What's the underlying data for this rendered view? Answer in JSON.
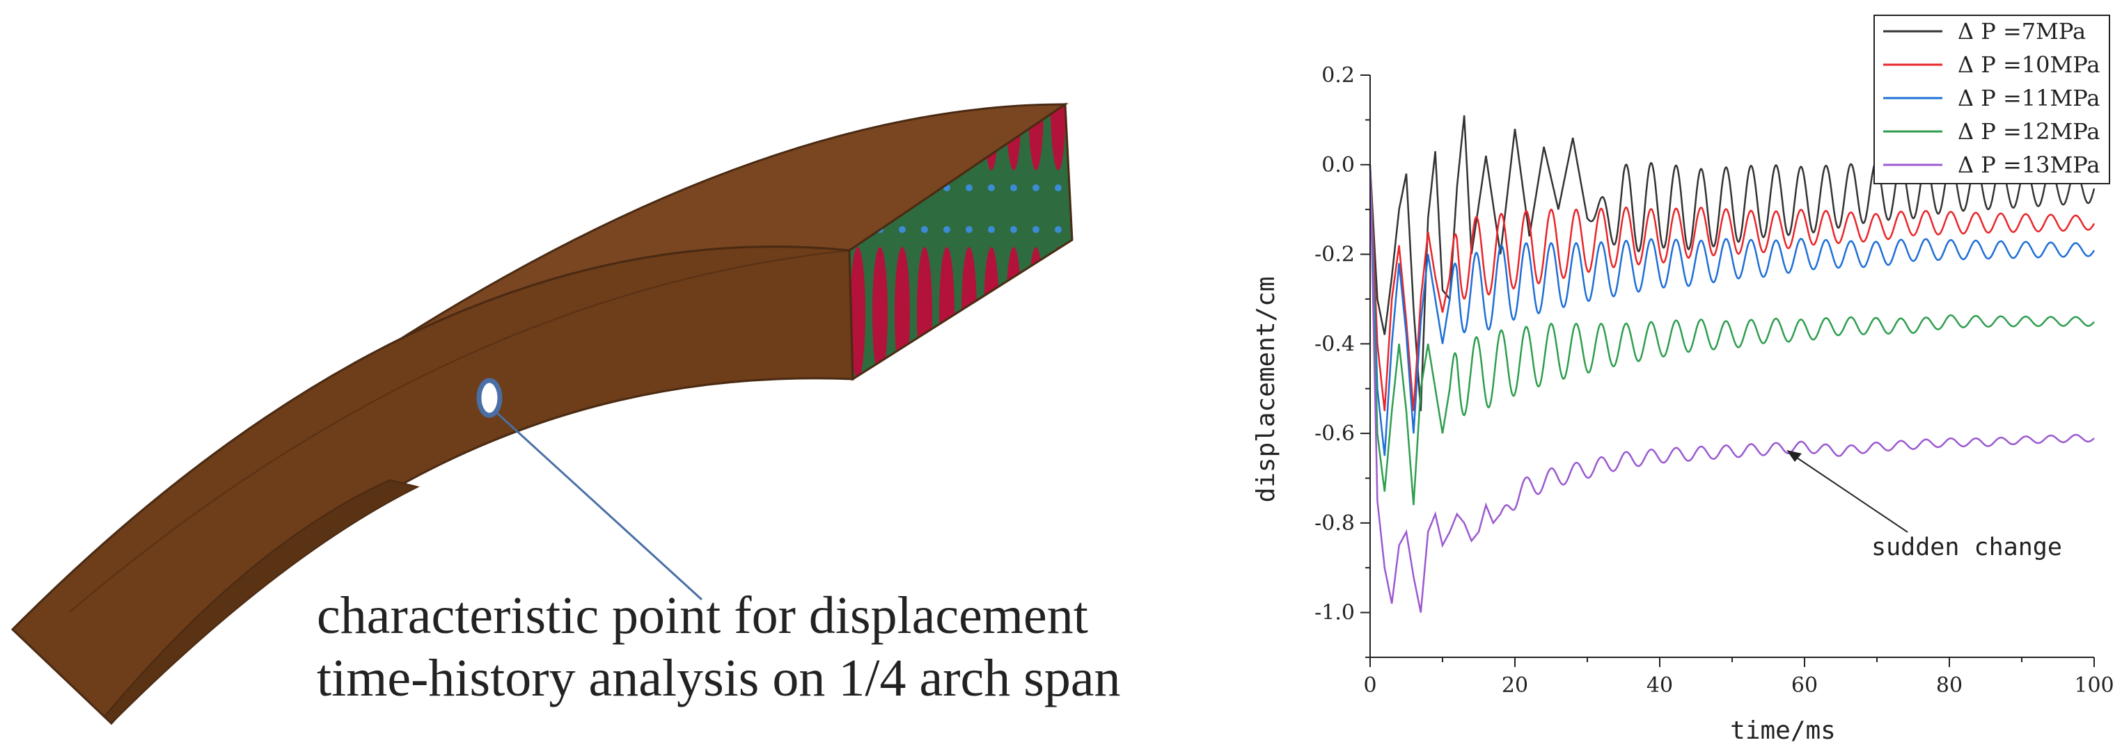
{
  "figure": {
    "model_caption": {
      "line1": "characteristic point for displacement",
      "line2": "time-history analysis on 1/4 arch span"
    },
    "colors": {
      "arch_face": "#7a4621",
      "arch_top": "#6a3a19",
      "arch_edge": "#4a2a12",
      "cell_red": "#b3123a",
      "cell_green": "#2e6b3f",
      "marker": "#4a6fa5"
    }
  },
  "chart_data": {
    "type": "line",
    "title": "",
    "xlabel": "time/ms",
    "ylabel": "displacement/cm",
    "xlim": [
      0,
      100
    ],
    "ylim": [
      -1.1,
      0.2
    ],
    "xticks": [
      0,
      20,
      40,
      60,
      80,
      100
    ],
    "yticks": [
      0.2,
      0.0,
      -0.2,
      -0.4,
      -0.6,
      -0.8,
      -1.0
    ],
    "xtick_labels": [
      "0",
      "20",
      "40",
      "60",
      "80",
      "100"
    ],
    "ytick_labels": [
      "0.2",
      "0.0",
      "-0.2",
      "-0.4",
      "-0.6",
      "-0.8",
      "-1.0"
    ],
    "legend_position": "top-right",
    "annotation": {
      "text": "sudden change",
      "x": 58,
      "y": -0.645
    },
    "series": [
      {
        "name": "Δ P =7MPa",
        "color": "#333333",
        "x": [
          0,
          1,
          2,
          3,
          4,
          5,
          6,
          7,
          8,
          9,
          10,
          11,
          12,
          13,
          14,
          16,
          18,
          20,
          22,
          24,
          26,
          28,
          30,
          35,
          40,
          45,
          50,
          55,
          60,
          65,
          70,
          75,
          80,
          85,
          90,
          95,
          100
        ],
        "y": [
          0.0,
          -0.3,
          -0.38,
          -0.25,
          -0.1,
          -0.02,
          -0.32,
          -0.55,
          -0.12,
          0.03,
          -0.28,
          -0.3,
          -0.05,
          0.11,
          -0.2,
          0.02,
          -0.2,
          0.08,
          -0.16,
          0.04,
          -0.1,
          0.06,
          -0.12,
          -0.1,
          -0.09,
          -0.1,
          -0.09,
          -0.08,
          -0.08,
          -0.07,
          -0.06,
          -0.06,
          -0.05,
          -0.05,
          -0.05,
          -0.05,
          -0.05
        ],
        "osc_amp": [
          0,
          0,
          0,
          0,
          0,
          0,
          0,
          0,
          0,
          0,
          0,
          0,
          0,
          0,
          0,
          0,
          0,
          0,
          0,
          0,
          0,
          0,
          0,
          0.1,
          0.095,
          0.09,
          0.085,
          0.08,
          0.075,
          0.07,
          0.065,
          0.06,
          0.055,
          0.05,
          0.045,
          0.04,
          0.035
        ]
      },
      {
        "name": "Δ P =10MPa",
        "color": "#e8262a",
        "x": [
          0,
          1,
          2,
          3,
          4,
          5,
          6,
          7,
          8,
          9,
          10,
          11,
          12,
          14,
          16,
          18,
          20,
          25,
          30,
          35,
          40,
          45,
          50,
          55,
          60,
          65,
          70,
          75,
          80,
          85,
          90,
          95,
          100
        ],
        "y": [
          0.0,
          -0.4,
          -0.55,
          -0.3,
          -0.18,
          -0.35,
          -0.55,
          -0.3,
          -0.15,
          -0.25,
          -0.33,
          -0.25,
          -0.18,
          -0.22,
          -0.2,
          -0.2,
          -0.19,
          -0.18,
          -0.17,
          -0.16,
          -0.16,
          -0.15,
          -0.15,
          -0.15,
          -0.14,
          -0.14,
          -0.14,
          -0.13,
          -0.13,
          -0.13,
          -0.13,
          -0.13,
          -0.13
        ],
        "osc_amp": [
          0,
          0,
          0,
          0,
          0,
          0,
          0,
          0,
          0,
          0,
          0,
          0,
          0.1,
          0.1,
          0.09,
          0.09,
          0.085,
          0.08,
          0.07,
          0.065,
          0.06,
          0.055,
          0.05,
          0.045,
          0.04,
          0.035,
          0.03,
          0.028,
          0.025,
          0.022,
          0.02,
          0.018,
          0.015
        ]
      },
      {
        "name": "Δ P =11MPa",
        "color": "#1e6fd6",
        "x": [
          0,
          1,
          2,
          3,
          4,
          5,
          6,
          7,
          8,
          9,
          10,
          11,
          12,
          14,
          16,
          18,
          20,
          25,
          30,
          35,
          40,
          45,
          50,
          55,
          60,
          65,
          70,
          75,
          80,
          85,
          90,
          95,
          100
        ],
        "y": [
          0.0,
          -0.5,
          -0.65,
          -0.4,
          -0.22,
          -0.38,
          -0.6,
          -0.35,
          -0.2,
          -0.3,
          -0.4,
          -0.3,
          -0.25,
          -0.3,
          -0.28,
          -0.27,
          -0.26,
          -0.25,
          -0.24,
          -0.23,
          -0.22,
          -0.22,
          -0.21,
          -0.21,
          -0.2,
          -0.2,
          -0.2,
          -0.19,
          -0.19,
          -0.19,
          -0.19,
          -0.19,
          -0.19
        ],
        "osc_amp": [
          0,
          0,
          0,
          0,
          0,
          0,
          0,
          0,
          0,
          0,
          0,
          0,
          0.1,
          0.1,
          0.09,
          0.09,
          0.085,
          0.075,
          0.065,
          0.06,
          0.055,
          0.05,
          0.045,
          0.04,
          0.035,
          0.03,
          0.028,
          0.025,
          0.022,
          0.02,
          0.018,
          0.016,
          0.014
        ]
      },
      {
        "name": "Δ P =12MPa",
        "color": "#2e9e4e",
        "x": [
          0,
          1,
          2,
          3,
          4,
          5,
          6,
          7,
          8,
          9,
          10,
          11,
          12,
          14,
          16,
          18,
          20,
          25,
          30,
          35,
          40,
          45,
          50,
          55,
          60,
          65,
          70,
          75,
          80,
          85,
          90,
          95,
          100
        ],
        "y": [
          0.0,
          -0.6,
          -0.73,
          -0.55,
          -0.4,
          -0.55,
          -0.76,
          -0.5,
          -0.4,
          -0.5,
          -0.6,
          -0.5,
          -0.45,
          -0.48,
          -0.46,
          -0.45,
          -0.44,
          -0.42,
          -0.41,
          -0.4,
          -0.39,
          -0.38,
          -0.38,
          -0.37,
          -0.37,
          -0.36,
          -0.36,
          -0.36,
          -0.35,
          -0.35,
          -0.35,
          -0.35,
          -0.35
        ],
        "osc_amp": [
          0,
          0,
          0,
          0,
          0,
          0,
          0,
          0,
          0,
          0,
          0,
          0,
          0.1,
          0.09,
          0.085,
          0.08,
          0.075,
          0.065,
          0.055,
          0.045,
          0.04,
          0.035,
          0.03,
          0.027,
          0.024,
          0.02,
          0.018,
          0.016,
          0.014,
          0.012,
          0.011,
          0.01,
          0.01
        ]
      },
      {
        "name": "Δ P =13MPa",
        "color": "#9b59d0",
        "x": [
          0,
          1,
          2,
          3,
          4,
          5,
          6,
          7,
          8,
          9,
          10,
          11,
          12,
          13,
          14,
          15,
          16,
          17,
          18,
          20,
          22,
          25,
          30,
          35,
          40,
          45,
          50,
          55,
          60,
          65,
          70,
          75,
          80,
          85,
          90,
          95,
          100
        ],
        "y": [
          0.0,
          -0.75,
          -0.9,
          -0.98,
          -0.85,
          -0.82,
          -0.92,
          -1.0,
          -0.82,
          -0.78,
          -0.85,
          -0.82,
          -0.78,
          -0.8,
          -0.84,
          -0.82,
          -0.76,
          -0.8,
          -0.78,
          -0.74,
          -0.72,
          -0.7,
          -0.68,
          -0.66,
          -0.65,
          -0.645,
          -0.64,
          -0.635,
          -0.63,
          -0.64,
          -0.63,
          -0.625,
          -0.62,
          -0.62,
          -0.615,
          -0.612,
          -0.61
        ],
        "osc_amp": [
          0,
          0,
          0,
          0,
          0,
          0,
          0,
          0,
          0,
          0,
          0,
          0,
          0,
          0,
          0,
          0,
          0,
          0,
          0,
          0.03,
          0.025,
          0.022,
          0.02,
          0.018,
          0.016,
          0.015,
          0.014,
          0.013,
          0.012,
          0.011,
          0.01,
          0.01,
          0.009,
          0.009,
          0.008,
          0.008,
          0.008
        ]
      }
    ]
  }
}
